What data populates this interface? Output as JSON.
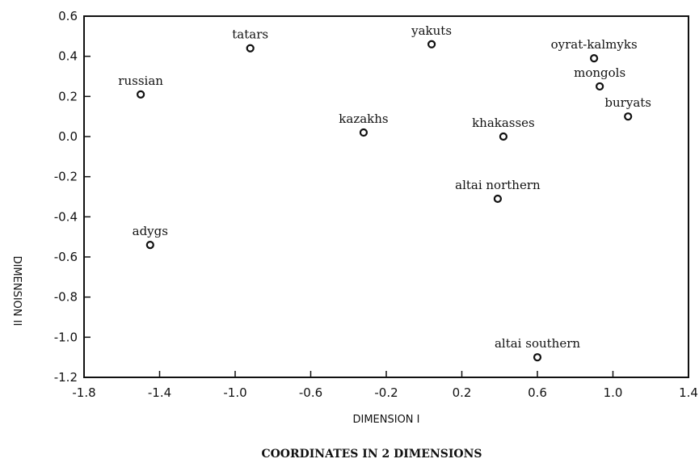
{
  "chart_data": {
    "type": "scatter",
    "title": "COORDINATES IN 2 DIMENSIONS",
    "xlabel": "DIMENSION I",
    "ylabel": "DIMENSION II",
    "xlim": [
      -1.8,
      1.4
    ],
    "ylim": [
      -1.2,
      0.6
    ],
    "x_ticks": [
      "-1.8",
      "-1.4",
      "-1.0",
      "-0.6",
      "-0.2",
      "0.2",
      "0.6",
      "1.0",
      "1.4"
    ],
    "y_ticks": [
      "0.6",
      "0.4",
      "0.2",
      "0.0",
      "-0.2",
      "-0.4",
      "-0.6",
      "-0.8",
      "-1.0",
      "-1.2"
    ],
    "grid": false,
    "points": [
      {
        "label": "tatars",
        "x": -0.92,
        "y": 0.44
      },
      {
        "label": "yakuts",
        "x": 0.04,
        "y": 0.46
      },
      {
        "label": "oyrat-kalmyks",
        "x": 0.9,
        "y": 0.39
      },
      {
        "label": "mongols",
        "x": 0.93,
        "y": 0.25
      },
      {
        "label": "russian",
        "x": -1.5,
        "y": 0.21
      },
      {
        "label": "buryats",
        "x": 1.08,
        "y": 0.1
      },
      {
        "label": "kazakhs",
        "x": -0.32,
        "y": 0.02
      },
      {
        "label": "khakasses",
        "x": 0.42,
        "y": 0.0
      },
      {
        "label": "altai northern",
        "x": 0.39,
        "y": -0.31
      },
      {
        "label": "adygs",
        "x": -1.45,
        "y": -0.54
      },
      {
        "label": "altai southern",
        "x": 0.6,
        "y": -1.1
      }
    ]
  }
}
